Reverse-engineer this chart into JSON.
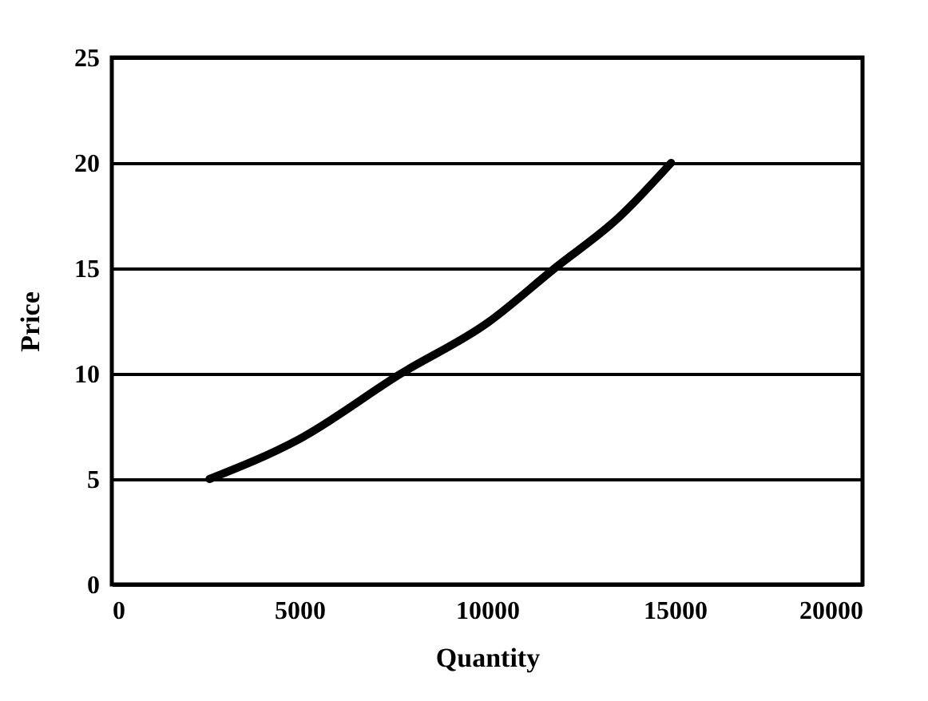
{
  "chart_data": {
    "type": "line",
    "xlabel": "Quantity",
    "ylabel": "Price",
    "x": [
      2600,
      5000,
      7700,
      10000,
      11800,
      13500,
      14900
    ],
    "series": [
      {
        "color": "#000000",
        "values": [
          5,
          6.9,
          10,
          12.4,
          15,
          17.4,
          20
        ]
      }
    ],
    "xlim": [
      0,
      20000
    ],
    "xticks": [
      0,
      5000,
      10000,
      15000,
      20000
    ],
    "ylim": [
      0,
      25
    ],
    "yticks": [
      0,
      5,
      10,
      15,
      20,
      25
    ],
    "grid": "y",
    "marker": "none",
    "line_style": "solid"
  }
}
